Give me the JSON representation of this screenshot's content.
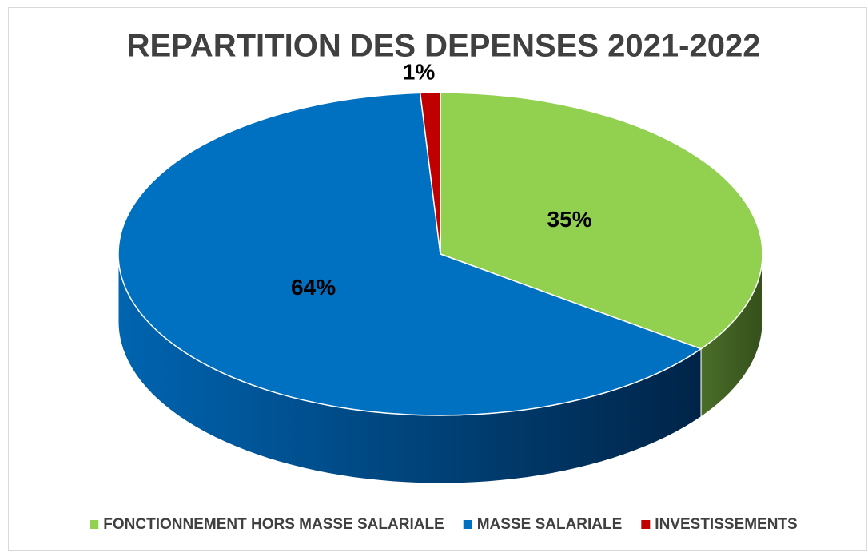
{
  "chart_data": {
    "type": "pie3d",
    "title": "REPARTITION DES DEPENSES 2021-2022",
    "categories": [
      "FONCTIONNEMENT HORS MASSE SALARIALE",
      "MASSE SALARIALE",
      "INVESTISSEMENTS"
    ],
    "values": [
      35,
      64,
      1
    ],
    "value_labels": [
      "35%",
      "64%",
      "1%"
    ],
    "colors": [
      "#92d050",
      "#0070c0",
      "#c00000"
    ],
    "legend": "bottom"
  }
}
